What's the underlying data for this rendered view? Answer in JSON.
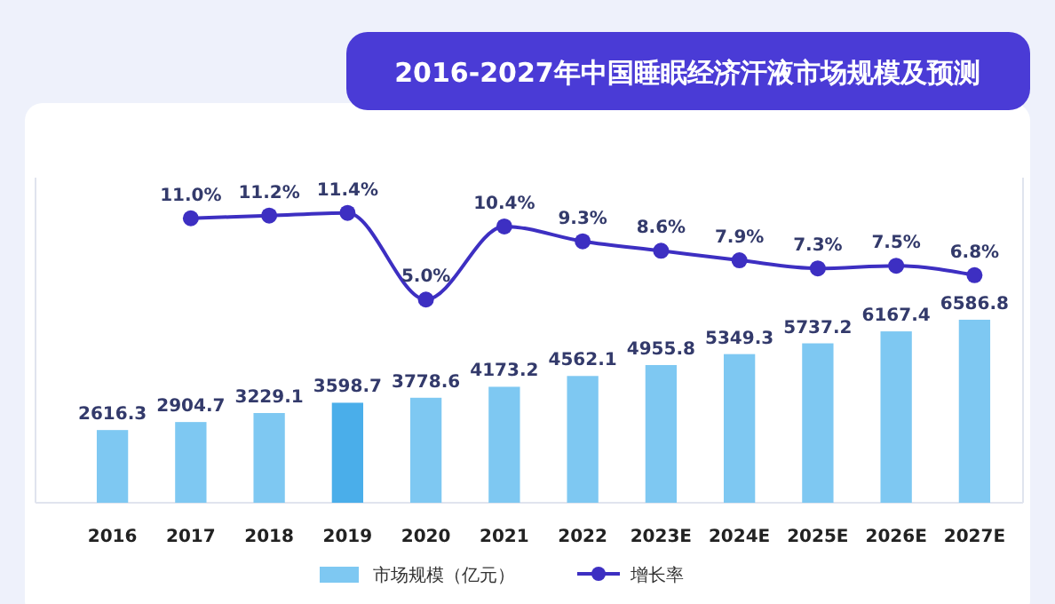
{
  "chart_data": {
    "type": "bar",
    "title": "2016-2027年中国睡眠经济汗液市场规模及预测",
    "categories": [
      "2016",
      "2017",
      "2018",
      "2019",
      "2020",
      "2021",
      "2022",
      "2023E",
      "2024E",
      "2025E",
      "2026E",
      "2027E"
    ],
    "series": [
      {
        "name": "市场规模（亿元）",
        "color": "#7ec8f2",
        "colors": [
          "#7ec8f2",
          "#7ec8f2",
          "#7ec8f2",
          "#4aaeea",
          "#7ec8f2",
          "#7ec8f2",
          "#7ec8f2",
          "#7ec8f2",
          "#7ec8f2",
          "#7ec8f2",
          "#7ec8f2",
          "#7ec8f2"
        ],
        "values": [
          2616.3,
          2904.7,
          3229.1,
          3598.7,
          3778.6,
          4173.2,
          4562.1,
          4955.8,
          5349.3,
          5737.2,
          6167.4,
          6586.8
        ],
        "value_labels": [
          "2616.3",
          "2904.7",
          "3229.1",
          "3598.7",
          "3778.6",
          "4173.2",
          "4562.1",
          "4955.8",
          "5349.3",
          "5737.2",
          "6167.4",
          "6586.8"
        ]
      },
      {
        "name": "增长率",
        "type": "line",
        "axis": "y2",
        "color": "#3d2fc2",
        "values": [
          null,
          11.0,
          11.2,
          11.4,
          5.0,
          10.4,
          9.3,
          8.6,
          7.9,
          7.3,
          7.5,
          6.8
        ],
        "value_labels": [
          null,
          "11.0%",
          "11.2%",
          "11.4%",
          "5.0%",
          "10.4%",
          "9.3%",
          "8.6%",
          "7.9%",
          "7.3%",
          "7.5%",
          "6.8%"
        ]
      }
    ],
    "ylim": [
      0,
      11700
    ],
    "y2lim": [
      -10,
      14
    ],
    "marker": "circle",
    "legend": "bottom",
    "tick_labels": "x"
  }
}
